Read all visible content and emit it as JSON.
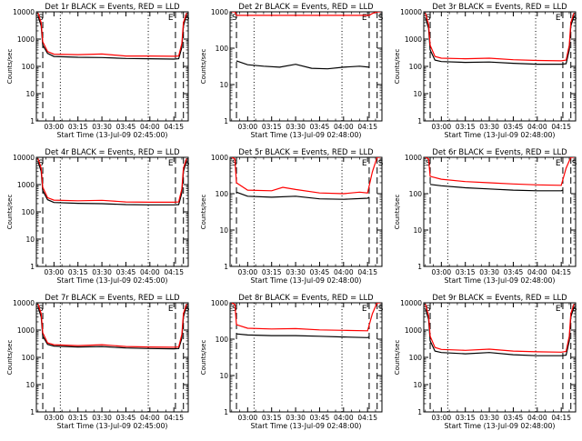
{
  "figure": {
    "chart_data": [
      {
        "type": "line",
        "title": "Det 1r BLACK = Events, RED = LLD",
        "xlabel": "Start Time (13-Jul-09 02:45:00)",
        "ylabel": "Counts/sec",
        "yscale": "log",
        "ylim": [
          1,
          10000
        ],
        "y_ticks": [
          "1",
          "10",
          "100",
          "1000",
          "10000"
        ],
        "xlim": [
          "02:49",
          "04:24"
        ],
        "x_ticks": [
          "03:00",
          "03:15",
          "03:30",
          "03:45",
          "04:00",
          "04:15"
        ],
        "markers": {
          "left": "S",
          "right_1": "E",
          "right_2": "S"
        },
        "dashed_lines": [
          "02:53",
          "04:16",
          "04:21"
        ],
        "dotted_lines": [
          "03:04",
          "03:59"
        ],
        "series": [
          {
            "color": "#000000",
            "x": [
              "02:50",
              "02:52",
              "02:53",
              "02:56",
              "03:00",
              "03:15",
              "03:30",
              "03:45",
              "04:00",
              "04:15",
              "04:18",
              "04:20",
              "04:21",
              "04:23"
            ],
            "values": [
              7000,
              3000,
              600,
              300,
              230,
              215,
              210,
              195,
              190,
              185,
              190,
              500,
              3000,
              8000
            ]
          },
          {
            "color": "#ff0000",
            "x": [
              "02:50",
              "02:52",
              "02:53",
              "02:56",
              "03:00",
              "03:15",
              "03:30",
              "03:45",
              "04:00",
              "04:15",
              "04:18",
              "04:20",
              "04:21",
              "04:23"
            ],
            "values": [
              9000,
              4000,
              800,
              350,
              280,
              270,
              285,
              240,
              240,
              235,
              240,
              700,
              4000,
              9000
            ]
          }
        ]
      },
      {
        "type": "line",
        "title": "Det 2r BLACK = Events, RED = LLD",
        "xlabel": "Start Time (13-Jul-09 02:48:00)",
        "ylabel": "Counts/sec",
        "yscale": "log",
        "ylim": [
          1,
          1000
        ],
        "y_ticks": [
          "1",
          "10",
          "100",
          "1000"
        ],
        "xlim": [
          "02:49",
          "04:24"
        ],
        "x_ticks": [
          "03:00",
          "03:15",
          "03:30",
          "03:45",
          "04:00",
          "04:15"
        ],
        "markers": {
          "left": "S",
          "right_1": "E",
          "right_2": "S"
        },
        "dashed_lines": [
          "02:53",
          "04:16",
          "04:21"
        ],
        "dotted_lines": [
          "03:04",
          "03:59"
        ],
        "series": [
          {
            "color": "#000000",
            "x": [
              "02:53",
              "03:00",
              "03:10",
              "03:20",
              "03:30",
              "03:40",
              "03:50",
              "04:00",
              "04:10",
              "04:16"
            ],
            "values": [
              45,
              35,
              32,
              30,
              36,
              28,
              27,
              30,
              32,
              30
            ]
          },
          {
            "color": "#ff0000",
            "x": [
              "02:50",
              "02:52",
              "02:53",
              "03:00",
              "03:30",
              "04:00",
              "04:15",
              "04:16",
              "04:18",
              "04:21",
              "04:23"
            ],
            "values": [
              1000,
              1000,
              800,
              800,
              800,
              800,
              800,
              800,
              900,
              1000,
              1000
            ]
          }
        ]
      },
      {
        "type": "line",
        "title": "Det 3r BLACK = Events, RED = LLD",
        "xlabel": "Start Time (13-Jul-09 02:48:00)",
        "ylabel": "Counts/sec",
        "yscale": "log",
        "ylim": [
          1,
          10000
        ],
        "y_ticks": [
          "1",
          "10",
          "100",
          "1000",
          "10000"
        ],
        "xlim": [
          "02:49",
          "04:24"
        ],
        "x_ticks": [
          "03:00",
          "03:15",
          "03:30",
          "03:45",
          "04:00",
          "04:15"
        ],
        "markers": {
          "left": "S",
          "right_1": "E",
          "right_2": "S"
        },
        "dashed_lines": [
          "02:53",
          "04:16",
          "04:21"
        ],
        "dotted_lines": [
          "03:04",
          "03:59"
        ],
        "series": [
          {
            "color": "#000000",
            "x": [
              "02:50",
              "02:52",
              "02:53",
              "02:56",
              "03:00",
              "03:15",
              "03:30",
              "03:45",
              "04:00",
              "04:15",
              "04:18",
              "04:20",
              "04:21",
              "04:23"
            ],
            "values": [
              6000,
              2500,
              400,
              170,
              150,
              140,
              145,
              130,
              120,
              120,
              125,
              400,
              3000,
              7000
            ]
          },
          {
            "color": "#ff0000",
            "x": [
              "02:50",
              "02:52",
              "02:53",
              "02:56",
              "03:00",
              "03:15",
              "03:30",
              "03:45",
              "04:00",
              "04:15",
              "04:18",
              "04:20",
              "04:21",
              "04:23"
            ],
            "values": [
              9000,
              3500,
              600,
              230,
              200,
              190,
              200,
              175,
              165,
              160,
              170,
              600,
              4000,
              9000
            ]
          }
        ]
      },
      {
        "type": "line",
        "title": "Det 4r BLACK = Events, RED = LLD",
        "xlabel": "Start Time (13-Jul-09 02:45:00)",
        "ylabel": "Counts/sec",
        "yscale": "log",
        "ylim": [
          1,
          10000
        ],
        "y_ticks": [
          "1",
          "10",
          "100",
          "1000",
          "10000"
        ],
        "xlim": [
          "02:49",
          "04:24"
        ],
        "x_ticks": [
          "03:00",
          "03:15",
          "03:30",
          "03:45",
          "04:00",
          "04:15"
        ],
        "markers": {
          "left": "S",
          "right_1": "E",
          "right_2": "S"
        },
        "dashed_lines": [
          "02:53",
          "04:16",
          "04:21"
        ],
        "dotted_lines": [
          "03:04",
          "03:59"
        ],
        "series": [
          {
            "color": "#000000",
            "x": [
              "02:50",
              "02:52",
              "02:53",
              "02:56",
              "03:00",
              "03:15",
              "03:30",
              "03:45",
              "04:00",
              "04:15",
              "04:18",
              "04:20",
              "04:21",
              "04:23"
            ],
            "values": [
              7000,
              3000,
              600,
              280,
              220,
              205,
              200,
              185,
              180,
              180,
              185,
              500,
              3000,
              8000
            ]
          },
          {
            "color": "#ff0000",
            "x": [
              "02:50",
              "02:52",
              "02:53",
              "02:56",
              "03:00",
              "03:15",
              "03:30",
              "03:45",
              "04:00",
              "04:15",
              "04:18",
              "04:20",
              "04:21",
              "04:23"
            ],
            "values": [
              9000,
              4000,
              800,
              330,
              270,
              255,
              265,
              230,
              225,
              225,
              230,
              700,
              4000,
              9000
            ]
          }
        ]
      },
      {
        "type": "line",
        "title": "Det 5r BLACK = Events, RED = LLD",
        "xlabel": "Start Time (13-Jul-09 02:48:00)",
        "ylabel": "Counts/sec",
        "yscale": "log",
        "ylim": [
          1,
          1000
        ],
        "y_ticks": [
          "1",
          "10",
          "100",
          "1000"
        ],
        "xlim": [
          "02:49",
          "04:24"
        ],
        "x_ticks": [
          "03:00",
          "03:15",
          "03:30",
          "03:45",
          "04:00",
          "04:15"
        ],
        "markers": {
          "left": "S",
          "right_1": "E",
          "right_2": "S"
        },
        "dashed_lines": [
          "02:53",
          "04:16",
          "04:21"
        ],
        "dotted_lines": [
          "03:04",
          "03:59"
        ],
        "series": [
          {
            "color": "#000000",
            "x": [
              "02:53",
              "03:00",
              "03:15",
              "03:30",
              "03:45",
              "04:00",
              "04:15",
              "04:16"
            ],
            "values": [
              110,
              85,
              80,
              85,
              72,
              70,
              75,
              80
            ]
          },
          {
            "color": "#ff0000",
            "x": [
              "02:50",
              "02:52",
              "02:53",
              "03:00",
              "03:15",
              "03:22",
              "03:30",
              "03:45",
              "04:00",
              "04:10",
              "04:15",
              "04:18",
              "04:21",
              "04:23"
            ],
            "values": [
              1000,
              900,
              200,
              125,
              120,
              150,
              130,
              105,
              100,
              110,
              105,
              400,
              1000,
              1000
            ]
          }
        ]
      },
      {
        "type": "line",
        "title": "Det 6r BLACK = Events, RED = LLD",
        "xlabel": "Start Time (13-Jul-09 02:48:00)",
        "ylabel": "Counts/sec",
        "yscale": "log",
        "ylim": [
          1,
          1000
        ],
        "y_ticks": [
          "1",
          "10",
          "100",
          "1000"
        ],
        "xlim": [
          "02:49",
          "04:24"
        ],
        "x_ticks": [
          "03:00",
          "03:15",
          "03:30",
          "03:45",
          "04:00",
          "04:15"
        ],
        "markers": {
          "left": "S",
          "right_1": "E",
          "right_2": "S"
        },
        "dashed_lines": [
          "02:53",
          "04:16",
          "04:21"
        ],
        "dotted_lines": [
          "03:04",
          "03:59"
        ],
        "series": [
          {
            "color": "#000000",
            "x": [
              "02:53",
              "03:00",
              "03:15",
              "03:30",
              "03:45",
              "04:00",
              "04:15",
              "04:16"
            ],
            "values": [
              180,
              165,
              145,
              135,
              125,
              120,
              120,
              125
            ]
          },
          {
            "color": "#ff0000",
            "x": [
              "02:50",
              "02:52",
              "02:53",
              "03:00",
              "03:15",
              "03:30",
              "03:45",
              "04:00",
              "04:15",
              "04:18",
              "04:21",
              "04:23"
            ],
            "values": [
              1000,
              900,
              300,
              250,
              215,
              200,
              185,
              175,
              170,
              500,
              1000,
              1000
            ]
          }
        ]
      },
      {
        "type": "line",
        "title": "Det 7r BLACK = Events, RED = LLD",
        "xlabel": "Start Time (13-Jul-09 02:45:00)",
        "ylabel": "Counts/sec",
        "yscale": "log",
        "ylim": [
          1,
          10000
        ],
        "y_ticks": [
          "1",
          "10",
          "100",
          "1000",
          "10000"
        ],
        "xlim": [
          "02:49",
          "04:24"
        ],
        "x_ticks": [
          "03:00",
          "03:15",
          "03:30",
          "03:45",
          "04:00",
          "04:15"
        ],
        "markers": {
          "left": "S",
          "right_1": "E",
          "right_2": "S"
        },
        "dashed_lines": [
          "02:53",
          "04:16",
          "04:21"
        ],
        "dotted_lines": [
          "03:04",
          "03:59"
        ],
        "series": [
          {
            "color": "#000000",
            "x": [
              "02:50",
              "02:52",
              "02:53",
              "02:56",
              "03:00",
              "03:15",
              "03:30",
              "03:45",
              "04:00",
              "04:15",
              "04:18",
              "04:20",
              "04:21",
              "04:23"
            ],
            "values": [
              7000,
              3000,
              600,
              300,
              260,
              240,
              250,
              220,
              210,
              205,
              210,
              500,
              3000,
              8000
            ]
          },
          {
            "color": "#ff0000",
            "x": [
              "02:50",
              "02:52",
              "02:53",
              "02:56",
              "03:00",
              "03:15",
              "03:30",
              "03:45",
              "04:00",
              "04:15",
              "04:18",
              "04:20",
              "04:21",
              "04:23"
            ],
            "values": [
              9000,
              4000,
              800,
              340,
              290,
              270,
              290,
              250,
              240,
              235,
              240,
              700,
              4000,
              9000
            ]
          }
        ]
      },
      {
        "type": "line",
        "title": "Det 8r BLACK = Events, RED = LLD",
        "xlabel": "Start Time (13-Jul-09 02:48:00)",
        "ylabel": "Counts/sec",
        "yscale": "log",
        "ylim": [
          1,
          1000
        ],
        "y_ticks": [
          "1",
          "10",
          "100",
          "1000"
        ],
        "xlim": [
          "02:49",
          "04:24"
        ],
        "x_ticks": [
          "03:00",
          "03:15",
          "03:30",
          "03:45",
          "04:00",
          "04:15"
        ],
        "markers": {
          "left": "S",
          "right_1": "E",
          "right_2": "S"
        },
        "dashed_lines": [
          "02:53",
          "04:16",
          "04:21"
        ],
        "dotted_lines": [
          "03:04",
          "03:59"
        ],
        "series": [
          {
            "color": "#000000",
            "x": [
              "02:53",
              "03:00",
              "03:15",
              "03:30",
              "03:45",
              "04:00",
              "04:15",
              "04:16"
            ],
            "values": [
              140,
              130,
              125,
              125,
              120,
              115,
              110,
              115
            ]
          },
          {
            "color": "#ff0000",
            "x": [
              "02:50",
              "02:52",
              "02:53",
              "03:00",
              "03:15",
              "03:30",
              "03:45",
              "04:00",
              "04:15",
              "04:18",
              "04:21",
              "04:23"
            ],
            "values": [
              1000,
              900,
              250,
              200,
              190,
              195,
              180,
              175,
              170,
              500,
              1000,
              1000
            ]
          }
        ]
      },
      {
        "type": "line",
        "title": "Det 9r BLACK = Events, RED = LLD",
        "xlabel": "Start Time (13-Jul-09 02:48:00)",
        "ylabel": "Counts/sec",
        "yscale": "log",
        "ylim": [
          1,
          10000
        ],
        "y_ticks": [
          "1",
          "10",
          "100",
          "1000",
          "10000"
        ],
        "xlim": [
          "02:49",
          "04:24"
        ],
        "x_ticks": [
          "03:00",
          "03:15",
          "03:30",
          "03:45",
          "04:00",
          "04:15"
        ],
        "markers": {
          "left": "S",
          "right_1": "E",
          "right_2": "S"
        },
        "dashed_lines": [
          "02:53",
          "04:16",
          "04:21"
        ],
        "dotted_lines": [
          "03:04",
          "03:59"
        ],
        "series": [
          {
            "color": "#000000",
            "x": [
              "02:50",
              "02:52",
              "02:53",
              "02:56",
              "03:00",
              "03:15",
              "03:30",
              "03:45",
              "04:00",
              "04:15",
              "04:18",
              "04:20",
              "04:21",
              "04:23"
            ],
            "values": [
              6000,
              2500,
              400,
              170,
              150,
              135,
              150,
              125,
              115,
              115,
              120,
              400,
              3000,
              7000
            ]
          },
          {
            "color": "#ff0000",
            "x": [
              "02:50",
              "02:52",
              "02:53",
              "02:56",
              "03:00",
              "03:15",
              "03:30",
              "03:45",
              "04:00",
              "04:15",
              "04:18",
              "04:20",
              "04:21",
              "04:23"
            ],
            "values": [
              9000,
              3500,
              600,
              230,
              195,
              180,
              200,
              170,
              160,
              155,
              165,
              600,
              4000,
              9000
            ]
          }
        ]
      }
    ]
  }
}
